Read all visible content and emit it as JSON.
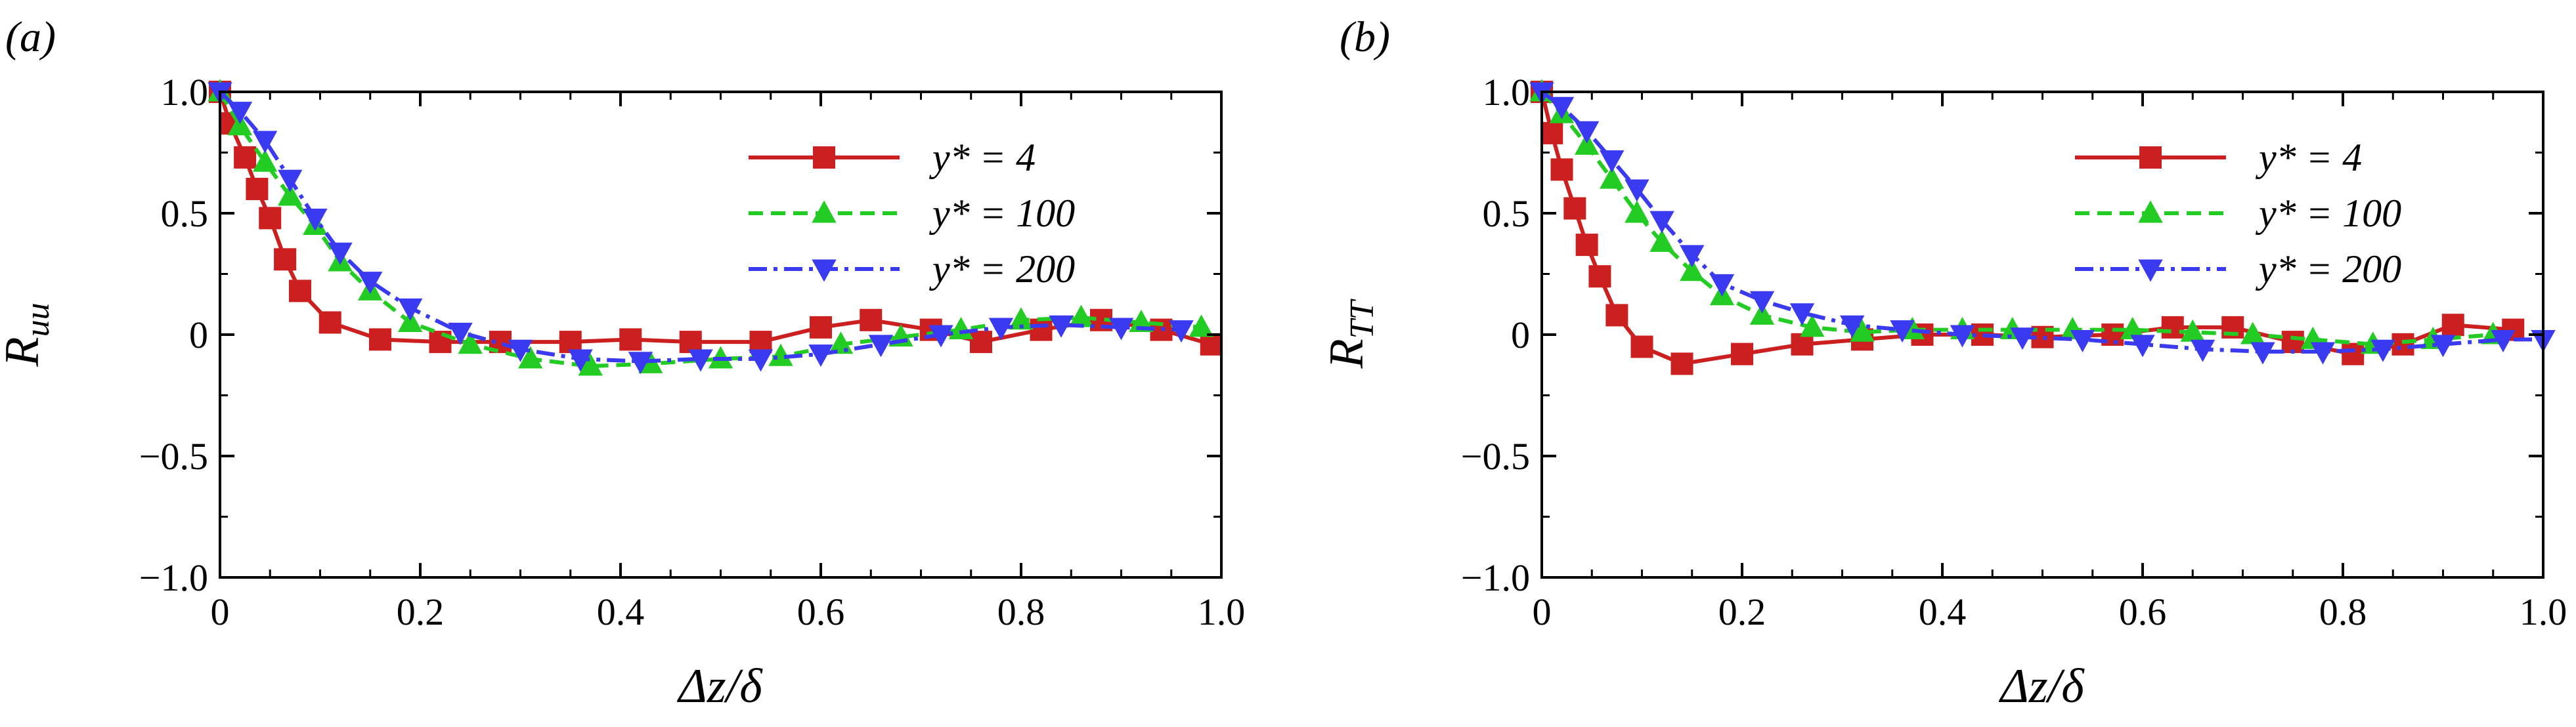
{
  "chart_data": [
    {
      "type": "line",
      "panel_label": "(a)",
      "ylabel_main": "R",
      "ylabel_sub": "uu",
      "xlabel": "Δz/δ",
      "xlim": [
        0,
        1.0
      ],
      "ylim": [
        -1.0,
        1.0
      ],
      "xticks": [
        "0",
        "0.2",
        "0.4",
        "0.6",
        "0.8",
        "1.0"
      ],
      "yticks": [
        "−1.0",
        "−0.5",
        "0",
        "0.5",
        "1.0"
      ],
      "grid": false,
      "legend_position": "top-right",
      "series": [
        {
          "name": "y* = 4",
          "color": "#cc1f1f",
          "line": "solid",
          "marker": "square",
          "points": [
            [
              0,
              1.0
            ],
            [
              0.01,
              0.87
            ],
            [
              0.025,
              0.73
            ],
            [
              0.037,
              0.6
            ],
            [
              0.05,
              0.48
            ],
            [
              0.065,
              0.31
            ],
            [
              0.08,
              0.18
            ],
            [
              0.11,
              0.05
            ],
            [
              0.16,
              -0.02
            ],
            [
              0.22,
              -0.03
            ],
            [
              0.28,
              -0.03
            ],
            [
              0.35,
              -0.03
            ],
            [
              0.41,
              -0.02
            ],
            [
              0.47,
              -0.03
            ],
            [
              0.54,
              -0.03
            ],
            [
              0.6,
              0.03
            ],
            [
              0.65,
              0.06
            ],
            [
              0.71,
              0.02
            ],
            [
              0.76,
              -0.03
            ],
            [
              0.82,
              0.02
            ],
            [
              0.88,
              0.06
            ],
            [
              0.94,
              0.02
            ],
            [
              0.99,
              -0.04
            ]
          ]
        },
        {
          "name": "y* = 100",
          "color": "#22cc22",
          "line": "dashed",
          "marker": "triangle-up",
          "points": [
            [
              0,
              1.0
            ],
            [
              0.02,
              0.86
            ],
            [
              0.045,
              0.71
            ],
            [
              0.07,
              0.57
            ],
            [
              0.095,
              0.45
            ],
            [
              0.12,
              0.3
            ],
            [
              0.15,
              0.18
            ],
            [
              0.19,
              0.05
            ],
            [
              0.25,
              -0.04
            ],
            [
              0.31,
              -0.1
            ],
            [
              0.37,
              -0.13
            ],
            [
              0.43,
              -0.12
            ],
            [
              0.5,
              -0.1
            ],
            [
              0.56,
              -0.09
            ],
            [
              0.62,
              -0.04
            ],
            [
              0.68,
              -0.01
            ],
            [
              0.74,
              0.02
            ],
            [
              0.8,
              0.06
            ],
            [
              0.86,
              0.07
            ],
            [
              0.92,
              0.05
            ],
            [
              0.98,
              0.03
            ]
          ]
        },
        {
          "name": "y* = 200",
          "color": "#3a3af0",
          "line": "dash-dot",
          "marker": "triangle-down",
          "points": [
            [
              0,
              1.0
            ],
            [
              0.02,
              0.92
            ],
            [
              0.045,
              0.8
            ],
            [
              0.07,
              0.64
            ],
            [
              0.095,
              0.48
            ],
            [
              0.12,
              0.34
            ],
            [
              0.15,
              0.22
            ],
            [
              0.19,
              0.11
            ],
            [
              0.24,
              0.01
            ],
            [
              0.3,
              -0.06
            ],
            [
              0.36,
              -0.1
            ],
            [
              0.42,
              -0.11
            ],
            [
              0.48,
              -0.1
            ],
            [
              0.54,
              -0.1
            ],
            [
              0.6,
              -0.08
            ],
            [
              0.66,
              -0.04
            ],
            [
              0.72,
              0.0
            ],
            [
              0.78,
              0.03
            ],
            [
              0.84,
              0.04
            ],
            [
              0.9,
              0.03
            ],
            [
              0.96,
              0.02
            ]
          ]
        }
      ]
    },
    {
      "type": "line",
      "panel_label": "(b)",
      "ylabel_main": "R",
      "ylabel_sub": "TT",
      "xlabel": "Δz/δ",
      "xlim": [
        0,
        1.0
      ],
      "ylim": [
        -1.0,
        1.0
      ],
      "xticks": [
        "0",
        "0.2",
        "0.4",
        "0.6",
        "0.8",
        "1.0"
      ],
      "yticks": [
        "−1.0",
        "−0.5",
        "0",
        "0.5",
        "1.0"
      ],
      "grid": false,
      "legend_position": "top-right",
      "series": [
        {
          "name": "y* = 4",
          "color": "#cc1f1f",
          "line": "solid",
          "marker": "square",
          "points": [
            [
              0,
              1.0
            ],
            [
              0.01,
              0.83
            ],
            [
              0.02,
              0.68
            ],
            [
              0.033,
              0.52
            ],
            [
              0.045,
              0.37
            ],
            [
              0.058,
              0.24
            ],
            [
              0.075,
              0.08
            ],
            [
              0.1,
              -0.05
            ],
            [
              0.14,
              -0.12
            ],
            [
              0.2,
              -0.08
            ],
            [
              0.26,
              -0.04
            ],
            [
              0.32,
              -0.02
            ],
            [
              0.38,
              0.0
            ],
            [
              0.44,
              0.0
            ],
            [
              0.5,
              -0.01
            ],
            [
              0.57,
              0.0
            ],
            [
              0.63,
              0.03
            ],
            [
              0.69,
              0.03
            ],
            [
              0.75,
              -0.03
            ],
            [
              0.81,
              -0.08
            ],
            [
              0.86,
              -0.04
            ],
            [
              0.91,
              0.04
            ],
            [
              0.97,
              0.02
            ]
          ]
        },
        {
          "name": "y* = 100",
          "color": "#22cc22",
          "line": "dashed",
          "marker": "triangle-up",
          "points": [
            [
              0,
              1.0
            ],
            [
              0.02,
              0.91
            ],
            [
              0.045,
              0.78
            ],
            [
              0.07,
              0.64
            ],
            [
              0.095,
              0.5
            ],
            [
              0.12,
              0.38
            ],
            [
              0.15,
              0.26
            ],
            [
              0.18,
              0.16
            ],
            [
              0.22,
              0.08
            ],
            [
              0.27,
              0.03
            ],
            [
              0.32,
              0.01
            ],
            [
              0.37,
              0.02
            ],
            [
              0.42,
              0.02
            ],
            [
              0.47,
              0.02
            ],
            [
              0.53,
              0.02
            ],
            [
              0.59,
              0.02
            ],
            [
              0.65,
              0.01
            ],
            [
              0.71,
              0.0
            ],
            [
              0.77,
              -0.02
            ],
            [
              0.83,
              -0.04
            ],
            [
              0.89,
              -0.02
            ],
            [
              0.95,
              0.0
            ]
          ]
        },
        {
          "name": "y* = 200",
          "color": "#3a3af0",
          "line": "dash-dot",
          "marker": "triangle-down",
          "points": [
            [
              0,
              1.0
            ],
            [
              0.02,
              0.94
            ],
            [
              0.045,
              0.84
            ],
            [
              0.07,
              0.72
            ],
            [
              0.095,
              0.6
            ],
            [
              0.12,
              0.47
            ],
            [
              0.15,
              0.33
            ],
            [
              0.18,
              0.21
            ],
            [
              0.22,
              0.14
            ],
            [
              0.26,
              0.09
            ],
            [
              0.31,
              0.04
            ],
            [
              0.36,
              0.02
            ],
            [
              0.42,
              0.0
            ],
            [
              0.48,
              -0.01
            ],
            [
              0.54,
              -0.02
            ],
            [
              0.6,
              -0.04
            ],
            [
              0.66,
              -0.06
            ],
            [
              0.72,
              -0.07
            ],
            [
              0.78,
              -0.07
            ],
            [
              0.84,
              -0.06
            ],
            [
              0.9,
              -0.04
            ],
            [
              0.96,
              -0.02
            ],
            [
              1.0,
              -0.02
            ]
          ]
        }
      ]
    }
  ]
}
